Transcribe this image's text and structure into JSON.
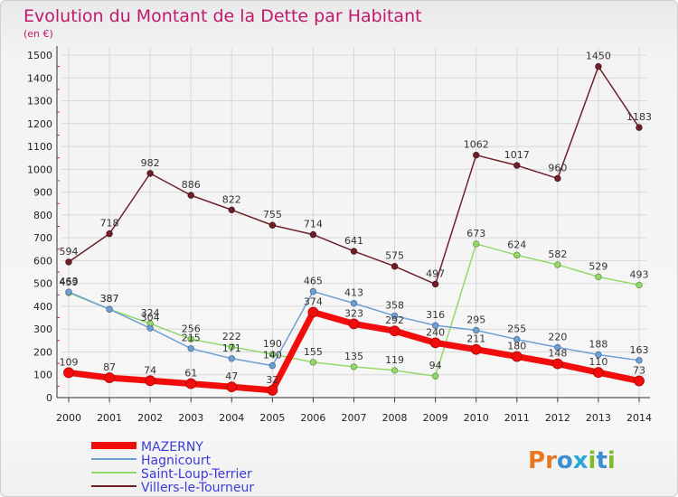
{
  "colors": {
    "title": "#c0186b",
    "legend_text": "#3b3bd6",
    "background": "#f3f3f3"
  },
  "chart_data": {
    "type": "line",
    "title": "Evolution du Montant de la Dette par Habitant",
    "subtitle": "(en €)",
    "x": [
      2000,
      2001,
      2002,
      2003,
      2004,
      2005,
      2006,
      2007,
      2008,
      2009,
      2010,
      2011,
      2012,
      2013,
      2014
    ],
    "ylim": [
      0,
      1500
    ],
    "yticks": [
      0,
      100,
      200,
      300,
      400,
      500,
      600,
      700,
      800,
      900,
      1000,
      1100,
      1200,
      1300,
      1400,
      1500
    ],
    "grid": true,
    "legend_position": "bottom-left",
    "series": [
      {
        "name": "Villers-le-Tourneur",
        "color": "#6e1f28",
        "width": 1.5,
        "values": [
          594,
          718,
          982,
          886,
          822,
          755,
          714,
          641,
          575,
          497,
          1062,
          1017,
          960,
          1450,
          1183
        ]
      },
      {
        "name": "Saint-Loup-Terrier",
        "color": "#93d96a",
        "width": 1.5,
        "values": [
          459,
          387,
          324,
          256,
          222,
          190,
          155,
          135,
          119,
          94,
          673,
          624,
          582,
          529,
          493
        ]
      },
      {
        "name": "Hagnicourt",
        "color": "#6d9fd3",
        "width": 1.5,
        "values": [
          463,
          387,
          304,
          215,
          171,
          140,
          465,
          413,
          358,
          316,
          295,
          255,
          220,
          188,
          163
        ]
      },
      {
        "name": "MAZERNY",
        "color": "#f20d0d",
        "width": 7,
        "values": [
          109,
          87,
          74,
          61,
          47,
          32,
          374,
          323,
          292,
          240,
          211,
          180,
          148,
          110,
          73
        ]
      }
    ]
  },
  "legend": [
    {
      "label": "MAZERNY",
      "color": "#f20d0d",
      "thick": true
    },
    {
      "label": "Hagnicourt",
      "color": "#6d9fd3",
      "thick": false
    },
    {
      "label": "Saint-Loup-Terrier",
      "color": "#93d96a",
      "thick": false
    },
    {
      "label": "Villers-le-Tourneur",
      "color": "#6e1f28",
      "thick": false
    }
  ],
  "logo": {
    "text": "Proxiti"
  }
}
